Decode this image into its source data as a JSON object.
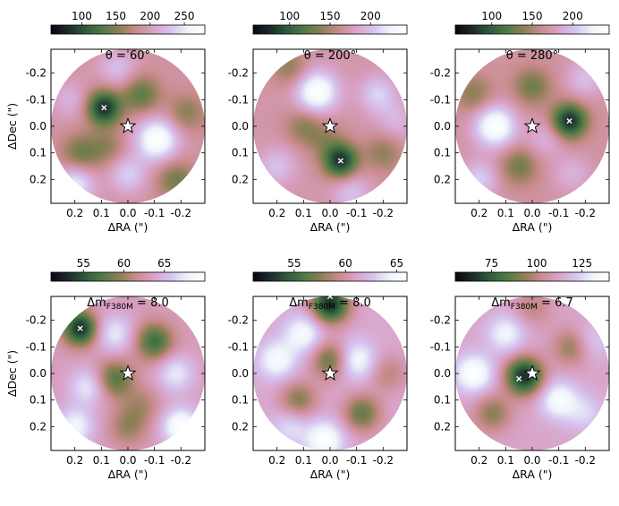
{
  "colormap": {
    "name": "cubehelix-like",
    "stops": [
      "#0b0410",
      "#1d2b2c",
      "#2f5a3d",
      "#4f7a45",
      "#8d7f56",
      "#c98b8c",
      "#d9a2c7",
      "#d6c4ef",
      "#eef4fb",
      "#ffffff"
    ]
  },
  "star_color": "#ffffff",
  "chart_data": [
    {
      "type": "heatmap",
      "title": "θ = 60°",
      "colorbar_ticks": [
        100,
        150,
        200,
        250
      ],
      "colorbar_range": [
        55,
        280
      ],
      "xlabel": "ΔRA (\")",
      "ylabel": "ΔDec (\")",
      "xticks": [
        "0.2",
        "0.1",
        "0.0",
        "-0.1",
        "-0.2"
      ],
      "yticks": [
        "-0.2",
        "-0.1",
        "0.0",
        "0.1",
        "0.2"
      ],
      "field_radius_arcsec": 0.29,
      "star": {
        "dra": 0.0,
        "ddec": 0.0
      },
      "marker": {
        "dra": 0.09,
        "ddec": -0.07
      },
      "blobs": [
        {
          "dra": 0.09,
          "ddec": -0.07,
          "amp": -1.2,
          "w": 0.045
        },
        {
          "dra": -0.11,
          "ddec": 0.05,
          "amp": 1.0,
          "w": 0.055
        },
        {
          "dra": -0.05,
          "ddec": -0.12,
          "amp": -0.6,
          "w": 0.05
        },
        {
          "dra": 0.18,
          "ddec": 0.1,
          "amp": -0.5,
          "w": 0.05
        },
        {
          "dra": 0.2,
          "ddec": 0.22,
          "amp": 0.7,
          "w": 0.05
        },
        {
          "dra": -0.22,
          "ddec": -0.05,
          "amp": -0.4,
          "w": 0.05
        },
        {
          "dra": 0.0,
          "ddec": 0.18,
          "amp": 0.5,
          "w": 0.05
        },
        {
          "dra": -0.18,
          "ddec": 0.2,
          "amp": -0.5,
          "w": 0.05
        },
        {
          "dra": 0.04,
          "ddec": -0.22,
          "amp": 0.4,
          "w": 0.05
        },
        {
          "dra": 0.22,
          "ddec": -0.1,
          "amp": 0.3,
          "w": 0.05
        },
        {
          "dra": 0.08,
          "ddec": 0.08,
          "amp": -0.35,
          "w": 0.05
        }
      ]
    },
    {
      "type": "heatmap",
      "title": "θ = 200°",
      "colorbar_ticks": [
        100,
        150,
        200
      ],
      "colorbar_range": [
        55,
        245
      ],
      "xlabel": "ΔRA (\")",
      "ylabel": "",
      "xticks": [
        "0.2",
        "0.1",
        "0.0",
        "-0.1",
        "-0.2"
      ],
      "yticks": [
        "-0.2",
        "-0.1",
        "0.0",
        "0.1",
        "0.2"
      ],
      "field_radius_arcsec": 0.29,
      "star": {
        "dra": 0.0,
        "ddec": 0.0
      },
      "marker": {
        "dra": -0.04,
        "ddec": 0.13
      },
      "blobs": [
        {
          "dra": -0.04,
          "ddec": 0.13,
          "amp": -1.2,
          "w": 0.045
        },
        {
          "dra": 0.05,
          "ddec": -0.13,
          "amp": 1.0,
          "w": 0.055
        },
        {
          "dra": 0.1,
          "ddec": 0.0,
          "amp": -0.4,
          "w": 0.05
        },
        {
          "dra": -0.18,
          "ddec": -0.12,
          "amp": 0.5,
          "w": 0.05
        },
        {
          "dra": 0.2,
          "ddec": 0.15,
          "amp": 0.4,
          "w": 0.05
        },
        {
          "dra": -0.2,
          "ddec": 0.1,
          "amp": -0.4,
          "w": 0.05
        },
        {
          "dra": 0.15,
          "ddec": -0.22,
          "amp": -0.4,
          "w": 0.05
        },
        {
          "dra": -0.08,
          "ddec": 0.25,
          "amp": 0.4,
          "w": 0.05
        },
        {
          "dra": 0.02,
          "ddec": 0.05,
          "amp": -0.3,
          "w": 0.05
        },
        {
          "dra": -0.25,
          "ddec": -0.02,
          "amp": 0.3,
          "w": 0.05
        }
      ]
    },
    {
      "type": "heatmap",
      "title": "θ = 280°",
      "colorbar_ticks": [
        100,
        150,
        200
      ],
      "colorbar_range": [
        55,
        245
      ],
      "xlabel": "ΔRA (\")",
      "ylabel": "",
      "xticks": [
        "0.2",
        "0.1",
        "0.0",
        "-0.1",
        "-0.2"
      ],
      "yticks": [
        "-0.2",
        "-0.1",
        "0.0",
        "0.1",
        "0.2"
      ],
      "field_radius_arcsec": 0.29,
      "star": {
        "dra": 0.0,
        "ddec": 0.0
      },
      "marker": {
        "dra": -0.14,
        "ddec": -0.02
      },
      "blobs": [
        {
          "dra": -0.14,
          "ddec": -0.02,
          "amp": -1.2,
          "w": 0.045
        },
        {
          "dra": 0.14,
          "ddec": 0.0,
          "amp": 1.0,
          "w": 0.055
        },
        {
          "dra": 0.0,
          "ddec": -0.15,
          "amp": -0.5,
          "w": 0.05
        },
        {
          "dra": 0.05,
          "ddec": 0.15,
          "amp": -0.5,
          "w": 0.05
        },
        {
          "dra": -0.2,
          "ddec": -0.18,
          "amp": 0.4,
          "w": 0.05
        },
        {
          "dra": 0.2,
          "ddec": 0.2,
          "amp": 0.5,
          "w": 0.05
        },
        {
          "dra": -0.15,
          "ddec": 0.18,
          "amp": 0.3,
          "w": 0.05
        },
        {
          "dra": 0.22,
          "ddec": -0.12,
          "amp": -0.4,
          "w": 0.05
        },
        {
          "dra": -0.05,
          "ddec": 0.05,
          "amp": 0.3,
          "w": 0.05
        }
      ]
    },
    {
      "type": "heatmap",
      "title": "Δm_F380M = 8.0",
      "title_main": "Δm",
      "title_sub": "F380M",
      "title_tail": " = 8.0",
      "colorbar_ticks": [
        55,
        60,
        65
      ],
      "colorbar_range": [
        51,
        70
      ],
      "xlabel": "ΔRA (\")",
      "ylabel": "ΔDec (\")",
      "xticks": [
        "0.2",
        "0.1",
        "0.0",
        "-0.1",
        "-0.2"
      ],
      "yticks": [
        "-0.2",
        "-0.1",
        "0.0",
        "0.1",
        "0.2"
      ],
      "field_radius_arcsec": 0.29,
      "star": {
        "dra": 0.0,
        "ddec": 0.0
      },
      "marker": {
        "dra": 0.18,
        "ddec": -0.17
      },
      "blobs": [
        {
          "dra": 0.18,
          "ddec": -0.17,
          "amp": -1.2,
          "w": 0.045
        },
        {
          "dra": -0.1,
          "ddec": -0.12,
          "amp": -0.8,
          "w": 0.05
        },
        {
          "dra": 0.05,
          "ddec": 0.02,
          "amp": -0.7,
          "w": 0.05
        },
        {
          "dra": -0.2,
          "ddec": 0.2,
          "amp": 0.8,
          "w": 0.05
        },
        {
          "dra": 0.15,
          "ddec": 0.05,
          "amp": 0.5,
          "w": 0.05
        },
        {
          "dra": 0.05,
          "ddec": -0.15,
          "amp": 0.5,
          "w": 0.05
        },
        {
          "dra": 0.2,
          "ddec": 0.2,
          "amp": 0.6,
          "w": 0.05
        },
        {
          "dra": -0.18,
          "ddec": 0.0,
          "amp": 0.5,
          "w": 0.05
        },
        {
          "dra": 0.0,
          "ddec": 0.2,
          "amp": -0.4,
          "w": 0.05
        },
        {
          "dra": -0.05,
          "ddec": 0.12,
          "amp": -0.3,
          "w": 0.05
        }
      ]
    },
    {
      "type": "heatmap",
      "title": "Δm_F380M = 8.0",
      "title_main": "Δm",
      "title_sub": "F380M",
      "title_tail": " = 8.0",
      "colorbar_ticks": [
        55,
        60,
        65
      ],
      "colorbar_range": [
        51,
        66
      ],
      "xlabel": "ΔRA (\")",
      "ylabel": "",
      "xticks": [
        "0.2",
        "0.1",
        "0.0",
        "-0.1",
        "-0.2"
      ],
      "yticks": [
        "-0.2",
        "-0.1",
        "0.0",
        "0.1",
        "0.2"
      ],
      "field_radius_arcsec": 0.29,
      "star": {
        "dra": 0.0,
        "ddec": 0.0
      },
      "marker": {
        "dra": 0.0,
        "ddec": -0.29
      },
      "blobs": [
        {
          "dra": 0.0,
          "ddec": -0.26,
          "amp": -1.1,
          "w": 0.05
        },
        {
          "dra": 0.0,
          "ddec": -0.05,
          "amp": -0.6,
          "w": 0.05
        },
        {
          "dra": 0.12,
          "ddec": 0.1,
          "amp": -0.5,
          "w": 0.05
        },
        {
          "dra": -0.12,
          "ddec": 0.15,
          "amp": -0.6,
          "w": 0.05
        },
        {
          "dra": 0.2,
          "ddec": -0.05,
          "amp": 0.5,
          "w": 0.05
        },
        {
          "dra": -0.1,
          "ddec": -0.05,
          "amp": 0.5,
          "w": 0.05
        },
        {
          "dra": 0.1,
          "ddec": -0.15,
          "amp": 0.5,
          "w": 0.05
        },
        {
          "dra": 0.02,
          "ddec": 0.25,
          "amp": 0.6,
          "w": 0.05
        },
        {
          "dra": -0.22,
          "ddec": 0.0,
          "amp": -0.3,
          "w": 0.05
        },
        {
          "dra": 0.15,
          "ddec": 0.2,
          "amp": 0.3,
          "w": 0.05
        }
      ]
    },
    {
      "type": "heatmap",
      "title": "Δm_F380M = 6.7",
      "title_main": "Δm",
      "title_sub": "F380M",
      "title_tail": " = 6.7",
      "colorbar_ticks": [
        75,
        100,
        125
      ],
      "colorbar_range": [
        55,
        140
      ],
      "xlabel": "ΔRA (\")",
      "ylabel": "",
      "xticks": [
        "0.2",
        "0.1",
        "0.0",
        "-0.1",
        "-0.2"
      ],
      "yticks": [
        "-0.2",
        "-0.1",
        "0.0",
        "0.1",
        "0.2"
      ],
      "field_radius_arcsec": 0.29,
      "star": {
        "dra": 0.0,
        "ddec": 0.0
      },
      "marker": {
        "dra": 0.05,
        "ddec": 0.02
      },
      "blobs": [
        {
          "dra": 0.03,
          "ddec": 0.01,
          "amp": -1.2,
          "w": 0.05
        },
        {
          "dra": -0.15,
          "ddec": -0.1,
          "amp": -0.5,
          "w": 0.05
        },
        {
          "dra": 0.15,
          "ddec": 0.15,
          "amp": -0.5,
          "w": 0.05
        },
        {
          "dra": 0.22,
          "ddec": 0.0,
          "amp": 0.7,
          "w": 0.05
        },
        {
          "dra": -0.1,
          "ddec": 0.1,
          "amp": 0.6,
          "w": 0.05
        },
        {
          "dra": 0.1,
          "ddec": -0.15,
          "amp": 0.5,
          "w": 0.05
        },
        {
          "dra": -0.2,
          "ddec": 0.15,
          "amp": 0.3,
          "w": 0.05
        },
        {
          "dra": 0.0,
          "ddec": -0.25,
          "amp": -0.3,
          "w": 0.05
        },
        {
          "dra": -0.22,
          "ddec": -0.12,
          "amp": 0.3,
          "w": 0.05
        }
      ]
    }
  ]
}
